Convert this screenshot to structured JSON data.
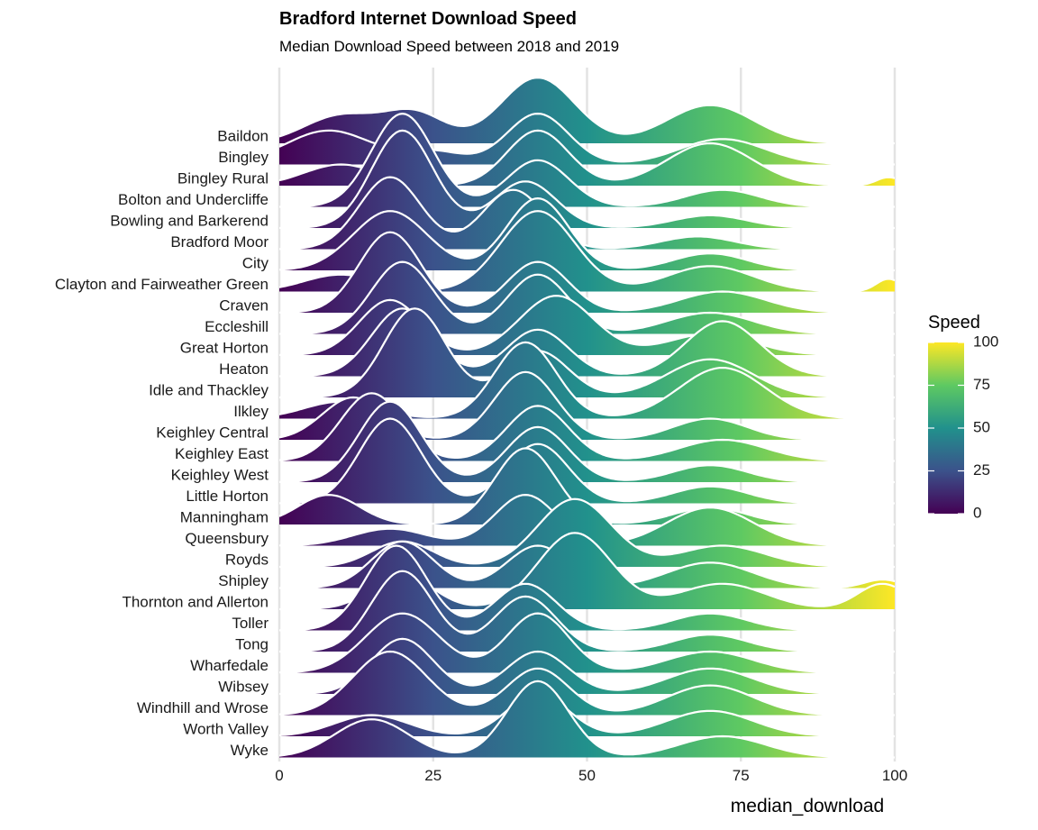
{
  "chart_data": {
    "type": "ridgeline",
    "title": "Bradford Internet Download Speed",
    "subtitle": "Median Download Speed between 2018 and 2019",
    "xlabel": "median_download",
    "ylabel": "",
    "xlim": [
      0,
      100
    ],
    "xticks": [
      0,
      25,
      50,
      75,
      100
    ],
    "grid": "vertical major",
    "fill": "viridis gradient along x",
    "outline_color": "#ffffff",
    "legend": {
      "title": "Speed",
      "position": "right",
      "ticks": [
        100,
        75,
        50,
        25,
        0
      ],
      "colors": [
        "#440154",
        "#3b528b",
        "#21918c",
        "#5ec962",
        "#fde725"
      ]
    },
    "categories": [
      "Baildon",
      "Bingley",
      "Bingley Rural",
      "Bolton and Undercliffe",
      "Bowling and Barkerend",
      "Bradford Moor",
      "City",
      "Clayton and Fairweather Green",
      "Craven",
      "Eccleshill",
      "Great Horton",
      "Heaton",
      "Idle and Thackley",
      "Ilkley",
      "Keighley Central",
      "Keighley East",
      "Keighley West",
      "Little Horton",
      "Manningham",
      "Queensbury",
      "Royds",
      "Shipley",
      "Thornton and Allerton",
      "Toller",
      "Tong",
      "Wharfedale",
      "Wibsey",
      "Windhill and Wrose",
      "Worth Valley",
      "Wyke"
    ],
    "series": [
      {
        "name": "Baildon",
        "peaks": [
          [
            10,
            0.65,
            6
          ],
          [
            22,
            0.7,
            5
          ],
          [
            42,
            1.55,
            6
          ],
          [
            70,
            0.9,
            7
          ]
        ]
      },
      {
        "name": "Bingley",
        "peaks": [
          [
            8,
            0.8,
            7
          ],
          [
            25,
            0.3,
            5
          ],
          [
            42,
            1.2,
            5
          ],
          [
            72,
            0.6,
            7
          ]
        ]
      },
      {
        "name": "Bingley Rural",
        "peaks": [
          [
            10,
            0.5,
            6
          ],
          [
            42,
            1.3,
            5
          ],
          [
            70,
            1.0,
            7
          ],
          [
            99,
            0.2,
            2
          ]
        ]
      },
      {
        "name": "Bolton and Undercliffe",
        "peaks": [
          [
            20,
            2.2,
            5
          ],
          [
            42,
            1.1,
            5
          ],
          [
            72,
            0.4,
            6
          ]
        ]
      },
      {
        "name": "Bowling and Barkerend",
        "peaks": [
          [
            20,
            2.3,
            5
          ],
          [
            40,
            1.1,
            5
          ],
          [
            70,
            0.3,
            6
          ]
        ]
      },
      {
        "name": "Bradford Moor",
        "peaks": [
          [
            18,
            1.7,
            5
          ],
          [
            38,
            1.4,
            5
          ],
          [
            68,
            0.3,
            6
          ]
        ]
      },
      {
        "name": "City",
        "peaks": [
          [
            18,
            1.4,
            6
          ],
          [
            42,
            1.7,
            5
          ],
          [
            70,
            0.4,
            6
          ]
        ]
      },
      {
        "name": "Clayton and Fairweather Green",
        "peaks": [
          [
            10,
            0.4,
            6
          ],
          [
            42,
            1.9,
            6
          ],
          [
            70,
            0.6,
            7
          ],
          [
            99,
            0.3,
            2
          ]
        ]
      },
      {
        "name": "Craven",
        "peaks": [
          [
            18,
            1.9,
            5
          ],
          [
            42,
            1.2,
            5
          ],
          [
            72,
            0.5,
            7
          ]
        ]
      },
      {
        "name": "Eccleshill",
        "peaks": [
          [
            20,
            1.7,
            5
          ],
          [
            42,
            1.4,
            5
          ],
          [
            70,
            0.5,
            7
          ]
        ]
      },
      {
        "name": "Great Horton",
        "peaks": [
          [
            18,
            1.3,
            5
          ],
          [
            45,
            1.4,
            6
          ],
          [
            70,
            0.5,
            7
          ]
        ]
      },
      {
        "name": "Heaton",
        "peaks": [
          [
            20,
            1.6,
            5
          ],
          [
            42,
            1.1,
            5
          ],
          [
            72,
            1.3,
            6
          ]
        ]
      },
      {
        "name": "Idle and Thackley",
        "peaks": [
          [
            22,
            2.1,
            5
          ],
          [
            42,
            1.1,
            5
          ],
          [
            70,
            0.9,
            7
          ]
        ]
      },
      {
        "name": "Ilkley",
        "peaks": [
          [
            10,
            0.4,
            6
          ],
          [
            40,
            1.8,
            5
          ],
          [
            72,
            1.2,
            7
          ]
        ]
      },
      {
        "name": "Keighley Central",
        "peaks": [
          [
            12,
            1.0,
            5
          ],
          [
            40,
            1.6,
            5
          ],
          [
            70,
            0.5,
            6
          ]
        ]
      },
      {
        "name": "Keighley East",
        "peaks": [
          [
            15,
            1.6,
            5
          ],
          [
            42,
            1.3,
            5
          ],
          [
            72,
            0.5,
            7
          ]
        ]
      },
      {
        "name": "Keighley West",
        "peaks": [
          [
            18,
            1.9,
            5
          ],
          [
            42,
            1.3,
            5
          ],
          [
            70,
            0.4,
            6
          ]
        ]
      },
      {
        "name": "Little Horton",
        "peaks": [
          [
            18,
            2.0,
            5
          ],
          [
            42,
            1.4,
            5
          ],
          [
            70,
            0.4,
            6
          ]
        ]
      },
      {
        "name": "Manningham",
        "peaks": [
          [
            8,
            0.7,
            5
          ],
          [
            40,
            1.8,
            5
          ],
          [
            70,
            0.4,
            6
          ]
        ]
      },
      {
        "name": "Queensbury",
        "peaks": [
          [
            18,
            0.4,
            6
          ],
          [
            40,
            1.2,
            5
          ],
          [
            70,
            0.9,
            7
          ]
        ]
      },
      {
        "name": "Royds",
        "peaks": [
          [
            20,
            0.6,
            5
          ],
          [
            48,
            1.6,
            6
          ],
          [
            72,
            0.5,
            7
          ]
        ]
      },
      {
        "name": "Shipley",
        "peaks": [
          [
            20,
            1.1,
            5
          ],
          [
            42,
            1.0,
            5
          ],
          [
            70,
            0.6,
            7
          ],
          [
            98,
            0.2,
            3
          ]
        ]
      },
      {
        "name": "Thornton and Allerton",
        "peaks": [
          [
            20,
            0.8,
            5
          ],
          [
            48,
            1.8,
            6
          ],
          [
            72,
            0.6,
            7
          ],
          [
            98,
            0.6,
            4
          ]
        ]
      },
      {
        "name": "Toller",
        "peaks": [
          [
            19,
            2.0,
            5
          ],
          [
            40,
            1.1,
            5
          ],
          [
            70,
            0.4,
            6
          ]
        ]
      },
      {
        "name": "Tong",
        "peaks": [
          [
            20,
            1.9,
            5
          ],
          [
            40,
            1.3,
            5
          ],
          [
            70,
            0.4,
            6
          ]
        ]
      },
      {
        "name": "Wharfedale",
        "peaks": [
          [
            20,
            1.4,
            6
          ],
          [
            42,
            1.4,
            5
          ],
          [
            70,
            0.5,
            7
          ]
        ]
      },
      {
        "name": "Wibsey",
        "peaks": [
          [
            20,
            1.3,
            5
          ],
          [
            42,
            1.0,
            5
          ],
          [
            70,
            0.6,
            7
          ]
        ]
      },
      {
        "name": "Windhill and Wrose",
        "peaks": [
          [
            18,
            1.5,
            6
          ],
          [
            42,
            1.1,
            5
          ],
          [
            70,
            0.7,
            7
          ]
        ]
      },
      {
        "name": "Worth Valley",
        "peaks": [
          [
            15,
            0.5,
            6
          ],
          [
            42,
            1.0,
            5
          ],
          [
            70,
            0.6,
            7
          ]
        ]
      },
      {
        "name": "Wyke",
        "peaks": [
          [
            15,
            0.9,
            6
          ],
          [
            42,
            1.8,
            5
          ],
          [
            72,
            0.5,
            7
          ]
        ]
      }
    ]
  }
}
